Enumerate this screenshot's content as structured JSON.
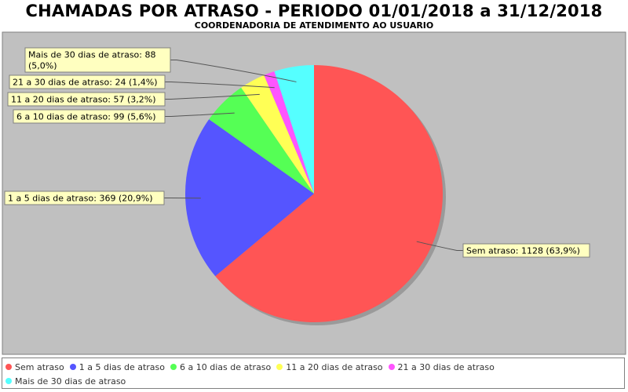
{
  "chart_data": {
    "type": "pie",
    "title": "CHAMADAS POR ATRASO - PERIODO 01/01/2018 a 31/12/2018",
    "subtitle": "COORDENADORIA DE ATENDIMENTO AO USUARIO",
    "legend_position": "bottom",
    "slices": [
      {
        "name": "Sem atraso",
        "value": 1128,
        "percent": "63,9%",
        "label": "Sem atraso: 1128 (63,9%)",
        "color": "#ff5555"
      },
      {
        "name": "1 a 5 dias de atraso",
        "value": 369,
        "percent": "20,9%",
        "label": "1 a 5 dias de atraso: 369 (20,9%)",
        "color": "#5555ff"
      },
      {
        "name": "6 a 10 dias de atraso",
        "value": 99,
        "percent": "5,6%",
        "label": "6 a 10 dias de atraso: 99 (5,6%)",
        "color": "#55ff55"
      },
      {
        "name": "11 a 20 dias de atraso",
        "value": 57,
        "percent": "3,2%",
        "label": "11 a 20 dias de atraso: 57 (3,2%)",
        "color": "#ffff55"
      },
      {
        "name": "21 a 30 dias de atraso",
        "value": 24,
        "percent": "1,4%",
        "label": "21 a 30 dias de atraso: 24 (1,4%)",
        "color": "#ff55ff"
      },
      {
        "name": "Mais de 30 dias de atraso",
        "value": 88,
        "percent": "5,0%",
        "label_lines": [
          "Mais de 30 dias de atraso: 88",
          "(5,0%)"
        ],
        "color": "#55ffff"
      }
    ]
  },
  "colors": {
    "plot_background": "#c0c0c0",
    "label_box": "#ffffc0"
  }
}
